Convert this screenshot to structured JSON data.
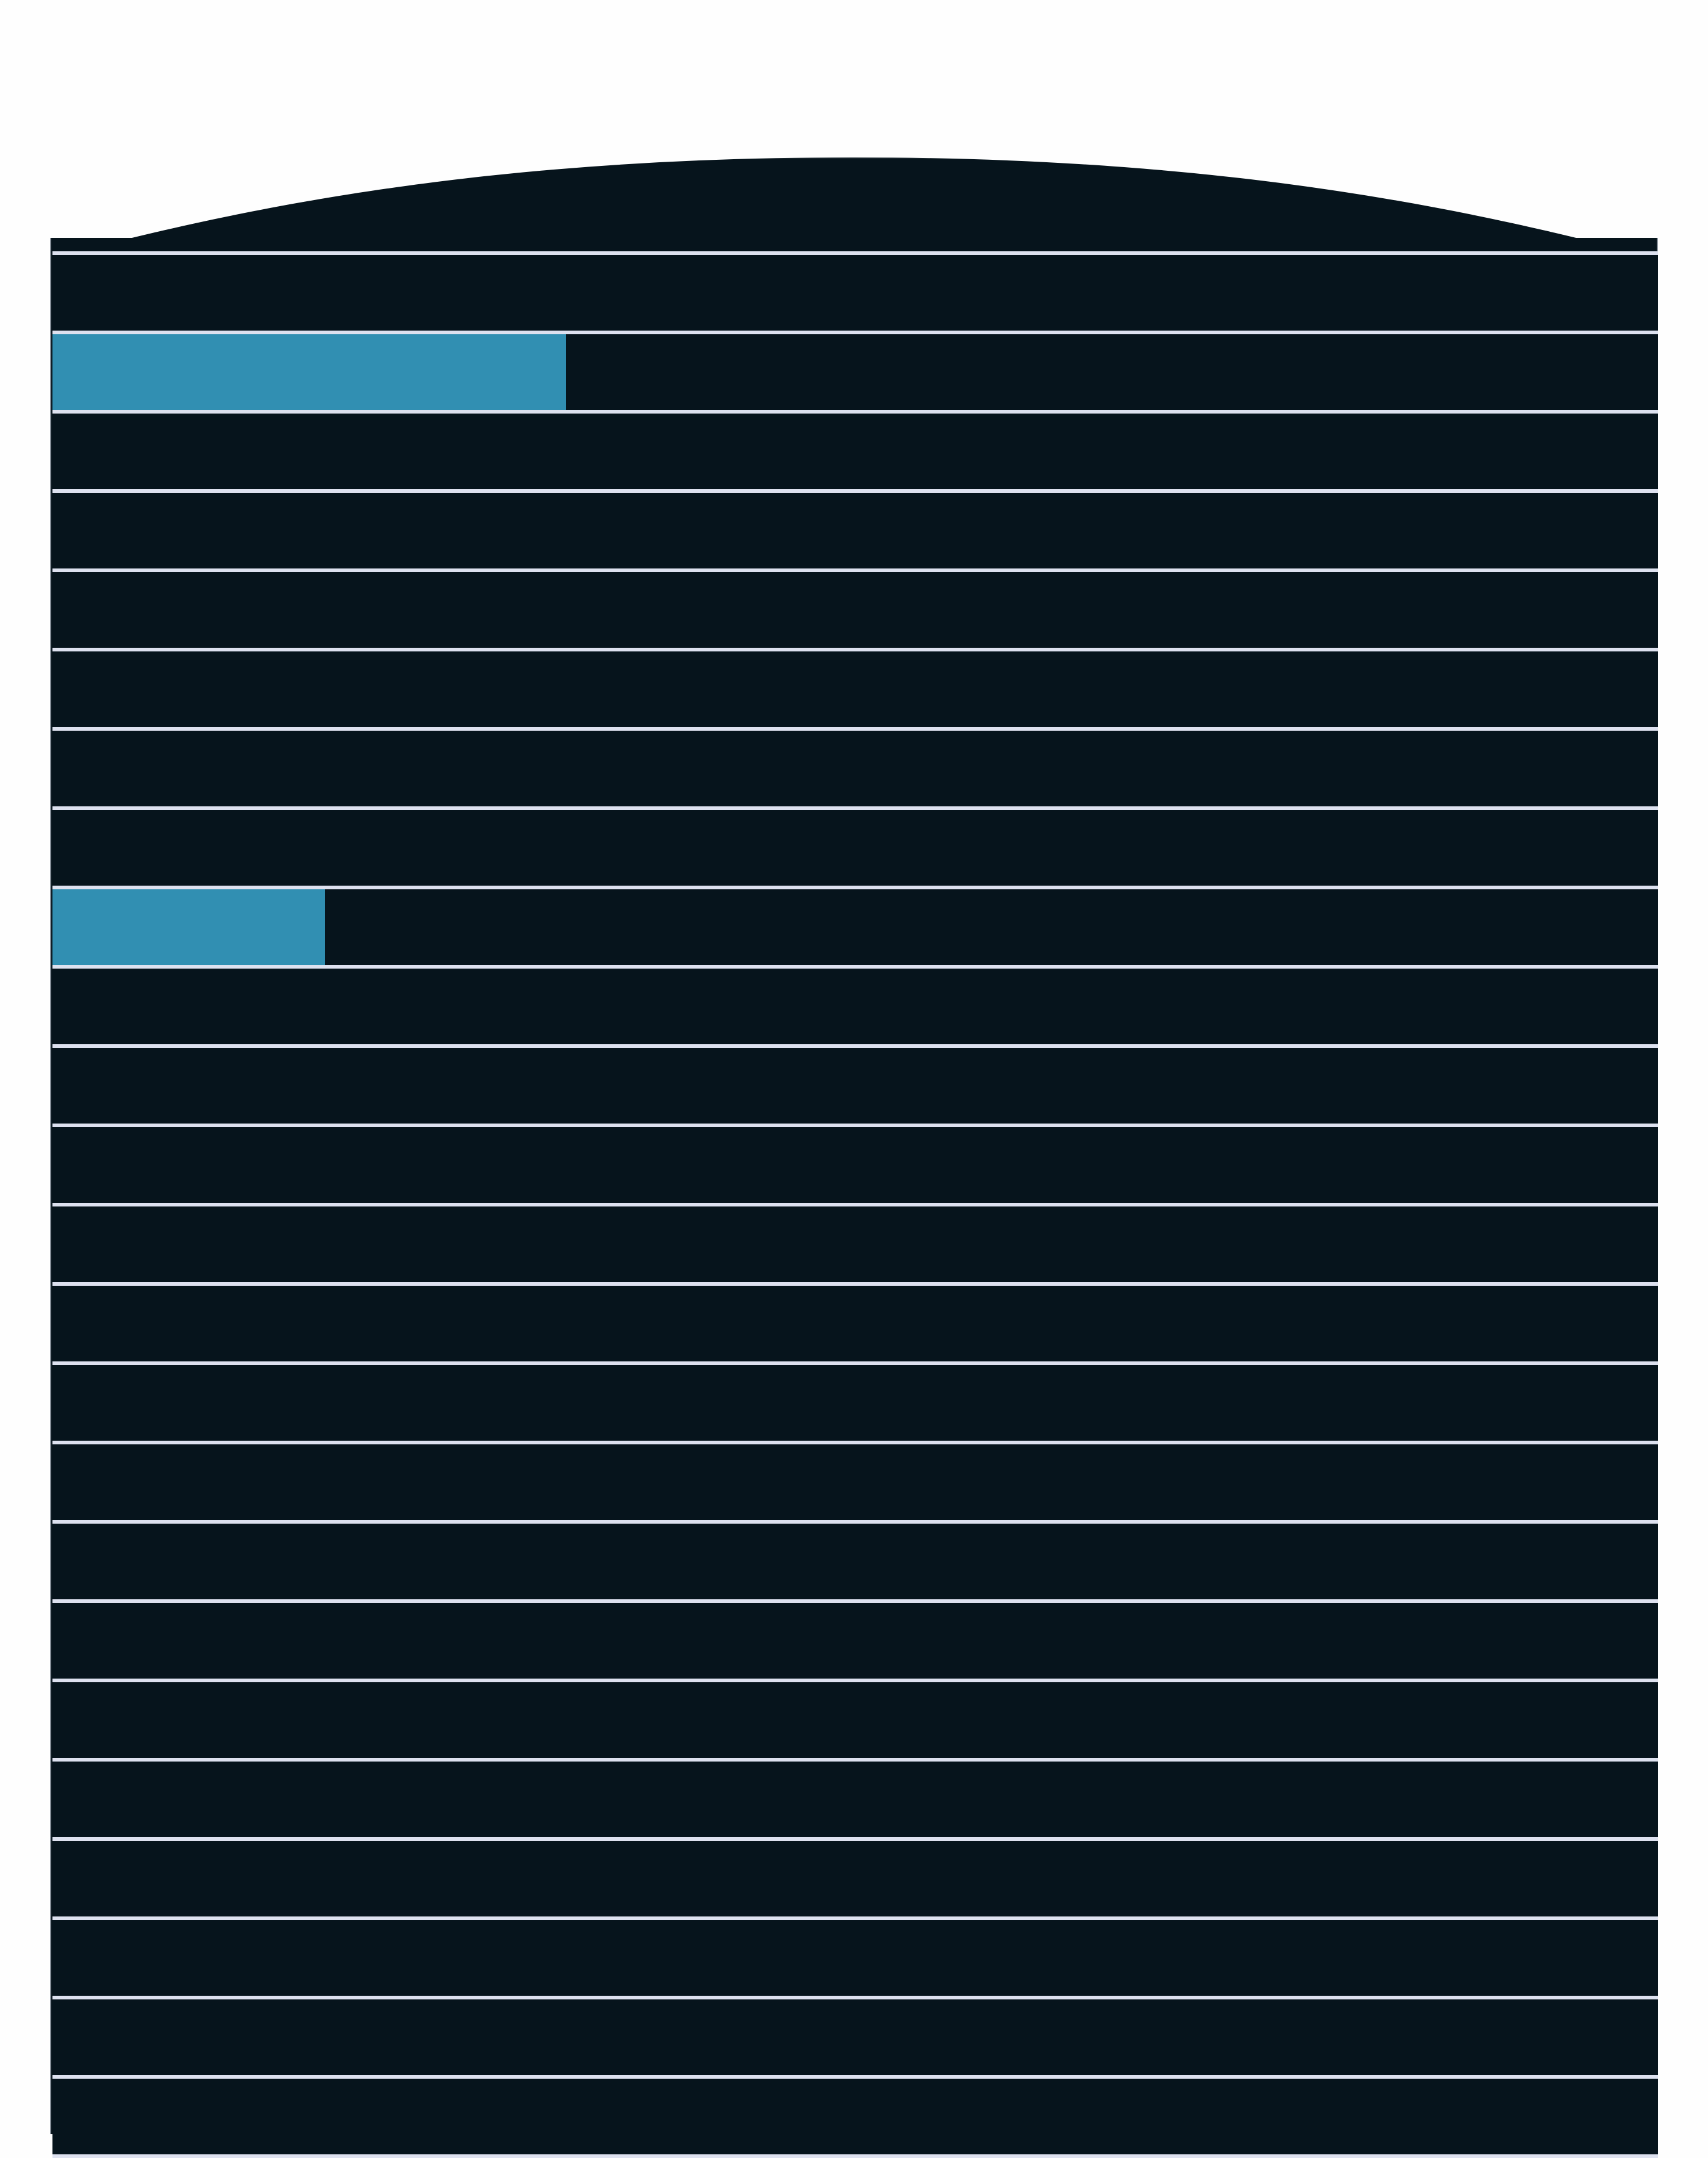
{
  "colors": {
    "panel_background": "#06141c",
    "row_separator": "#dde1ef",
    "progress_fill": "#318fb2",
    "page_background": "#fefefe"
  },
  "rows": [
    {
      "progress": 0
    },
    {
      "progress": 0.32
    },
    {
      "progress": 0
    },
    {
      "progress": 0
    },
    {
      "progress": 0
    },
    {
      "progress": 0
    },
    {
      "progress": 0
    },
    {
      "progress": 0
    },
    {
      "progress": 0.17
    },
    {
      "progress": 0
    },
    {
      "progress": 0
    },
    {
      "progress": 0
    },
    {
      "progress": 0
    },
    {
      "progress": 0
    },
    {
      "progress": 0
    },
    {
      "progress": 0
    },
    {
      "progress": 0
    },
    {
      "progress": 0
    },
    {
      "progress": 0
    },
    {
      "progress": 0
    },
    {
      "progress": 0
    },
    {
      "progress": 0
    },
    {
      "progress": 0
    },
    {
      "progress": 0
    }
  ]
}
